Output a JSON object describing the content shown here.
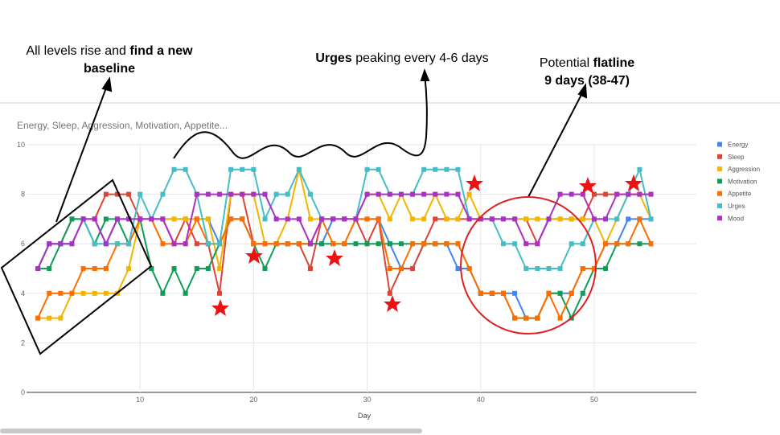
{
  "annotations": [
    {
      "text": "All levels rise and",
      "bold": "find a new baseline"
    },
    {
      "bold": "Urges",
      "text": "peaking every 4-6 days"
    },
    {
      "text": "Potential",
      "bold": "flatline",
      "line2": "9 days (38-47)"
    }
  ],
  "chart_data": {
    "type": "line",
    "title": "Energy, Sleep, Aggression, Motivation, Appetite...",
    "x_label": "Day",
    "x": [
      1,
      2,
      3,
      4,
      5,
      6,
      7,
      8,
      9,
      10,
      11,
      12,
      13,
      14,
      15,
      16,
      17,
      18,
      19,
      20,
      21,
      22,
      23,
      24,
      25,
      26,
      27,
      28,
      29,
      30,
      31,
      32,
      33,
      34,
      35,
      36,
      37,
      38,
      39,
      40,
      41,
      42,
      43,
      44,
      45,
      46,
      47,
      48,
      49,
      50,
      51,
      52,
      53,
      54,
      55
    ],
    "xlim": [
      0,
      59
    ],
    "xticks": [
      10,
      20,
      30,
      40,
      50
    ],
    "ylim": [
      0,
      10
    ],
    "yticks": [
      0,
      2,
      4,
      6,
      8,
      10
    ],
    "grid": true,
    "legend": "right",
    "series": [
      {
        "name": "Energy",
        "color": "#4285f4",
        "values": [
          5,
          6,
          6,
          6,
          7,
          7,
          6,
          7,
          7,
          7,
          7,
          7,
          7,
          7,
          7,
          7,
          6,
          7,
          7,
          6,
          6,
          6,
          6,
          6,
          6,
          6,
          7,
          7,
          7,
          7,
          7,
          6,
          5,
          5,
          6,
          6,
          6,
          5,
          5,
          4,
          4,
          4,
          4,
          3,
          3,
          4,
          4,
          4,
          5,
          5,
          6,
          6,
          7,
          7,
          7
        ]
      },
      {
        "name": "Sleep",
        "color": "#db4437",
        "values": [
          5,
          6,
          6,
          7,
          7,
          7,
          8,
          8,
          8,
          7,
          7,
          7,
          6,
          7,
          6,
          6,
          4,
          8,
          8,
          6,
          6,
          6,
          6,
          6,
          5,
          7,
          7,
          7,
          7,
          6,
          7,
          4,
          5,
          5,
          6,
          7,
          7,
          7,
          7,
          7,
          7,
          7,
          7,
          7,
          6,
          7,
          7,
          7,
          7,
          8,
          8,
          8,
          8,
          8,
          8
        ]
      },
      {
        "name": "Aggression",
        "color": "#f4b400",
        "values": [
          3,
          3,
          3,
          4,
          4,
          4,
          4,
          4,
          5,
          7,
          7,
          7,
          7,
          7,
          7,
          7,
          5,
          8,
          8,
          8,
          6,
          6,
          7,
          9,
          7,
          7,
          7,
          7,
          7,
          8,
          8,
          7,
          8,
          7,
          7,
          8,
          7,
          7,
          8,
          7,
          7,
          7,
          7,
          7,
          7,
          7,
          7,
          7,
          7,
          7,
          6,
          7,
          8,
          8,
          7
        ]
      },
      {
        "name": "Motivation",
        "color": "#0f9d58",
        "values": [
          5,
          5,
          6,
          7,
          7,
          6,
          7,
          7,
          6,
          7,
          5,
          4,
          5,
          4,
          5,
          5,
          6,
          7,
          7,
          6,
          5,
          6,
          6,
          6,
          6,
          6,
          6,
          6,
          6,
          6,
          6,
          6,
          6,
          6,
          6,
          6,
          6,
          6,
          5,
          4,
          4,
          4,
          3,
          3,
          3,
          4,
          4,
          3,
          4,
          5,
          5,
          6,
          6,
          6,
          6
        ]
      },
      {
        "name": "Appetite",
        "color": "#ff6d00",
        "values": [
          3,
          4,
          4,
          4,
          5,
          5,
          5,
          6,
          6,
          7,
          7,
          6,
          6,
          6,
          7,
          6,
          6,
          7,
          7,
          6,
          6,
          6,
          6,
          6,
          6,
          7,
          6,
          6,
          7,
          7,
          7,
          5,
          5,
          6,
          6,
          6,
          6,
          6,
          5,
          4,
          4,
          4,
          3,
          3,
          3,
          4,
          3,
          4,
          5,
          5,
          6,
          6,
          6,
          7,
          6
        ]
      },
      {
        "name": "Urges",
        "color": "#46bdc6",
        "values": [
          5,
          6,
          6,
          6,
          7,
          6,
          6,
          6,
          6,
          8,
          7,
          8,
          9,
          9,
          8,
          6,
          6,
          9,
          9,
          9,
          7,
          8,
          8,
          9,
          8,
          7,
          7,
          7,
          7,
          9,
          9,
          8,
          8,
          8,
          9,
          9,
          9,
          9,
          7,
          7,
          7,
          6,
          6,
          5,
          5,
          5,
          5,
          6,
          6,
          7,
          7,
          7,
          8,
          9,
          7
        ]
      },
      {
        "name": "Mood",
        "color": "#ab30c4",
        "values": [
          5,
          6,
          6,
          6,
          7,
          7,
          6,
          7,
          7,
          7,
          7,
          7,
          6,
          6,
          8,
          8,
          8,
          8,
          8,
          8,
          8,
          7,
          7,
          7,
          6,
          7,
          7,
          7,
          7,
          8,
          8,
          8,
          8,
          8,
          8,
          8,
          8,
          8,
          7,
          7,
          7,
          7,
          7,
          6,
          6,
          7,
          8,
          8,
          8,
          7,
          7,
          8,
          8,
          8,
          8
        ]
      }
    ]
  }
}
